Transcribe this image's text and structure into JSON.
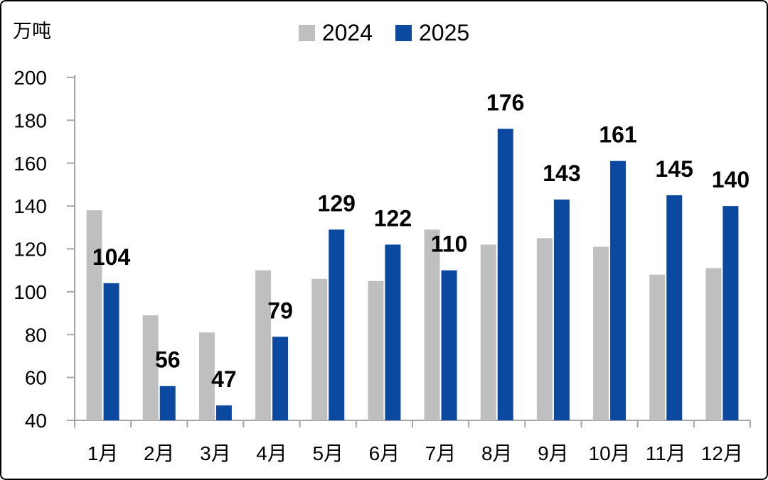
{
  "unit_label": "万吨",
  "legend": {
    "items": [
      {
        "label": "2024",
        "color": "#BFBFBF"
      },
      {
        "label": "2025",
        "color": "#0B48A0"
      }
    ]
  },
  "chart_data": {
    "type": "bar",
    "title": "",
    "ylabel": "万吨",
    "xlabel": "",
    "categories": [
      "1月",
      "2月",
      "3月",
      "4月",
      "5月",
      "6月",
      "7月",
      "8月",
      "9月",
      "10月",
      "11月",
      "12月"
    ],
    "series": [
      {
        "name": "2024",
        "color": "#BFBFBF",
        "data_labels": false,
        "values": [
          138,
          89,
          81,
          110,
          106,
          105,
          129,
          122,
          125,
          121,
          108,
          111
        ]
      },
      {
        "name": "2025",
        "color": "#0B48A0",
        "data_labels": true,
        "values": [
          104,
          56,
          47,
          79,
          129,
          122,
          110,
          176,
          143,
          161,
          145,
          140
        ]
      }
    ],
    "ylim": [
      40,
      200
    ],
    "ytick_step": 20,
    "yticks": [
      40,
      60,
      80,
      100,
      120,
      140,
      160,
      180,
      200
    ],
    "grid": false,
    "legend_position": "top-center",
    "axis_color": "#A6A6A6",
    "label_color": "#000000"
  }
}
